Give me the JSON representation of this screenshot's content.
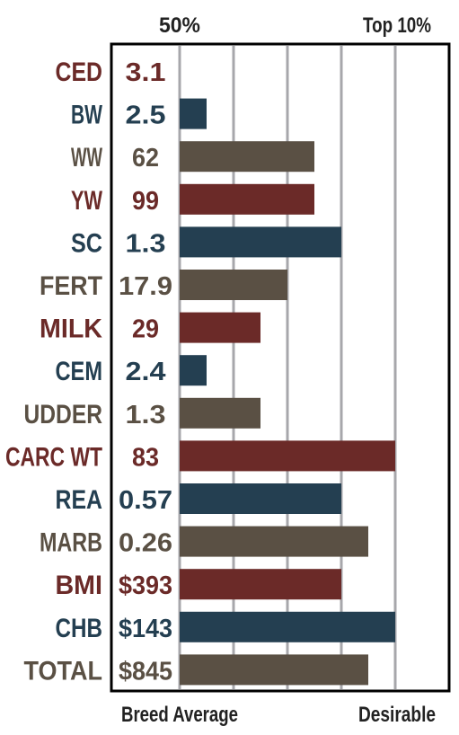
{
  "chart_data": {
    "type": "bar",
    "orientation": "horizontal",
    "top_labels": [
      "50%",
      "Top 10%"
    ],
    "bottom_labels": [
      "Breed Average",
      "Desirable"
    ],
    "xlim": [
      0,
      5
    ],
    "grid": true,
    "colors": {
      "red": "#6b2a28",
      "blue": "#243f51",
      "brown": "#5a5044"
    },
    "rows": [
      {
        "trait": "CED",
        "value_label": "3.1",
        "bar": 0,
        "color": "red"
      },
      {
        "trait": "BW",
        "value_label": "2.5",
        "bar": 0.5,
        "color": "blue"
      },
      {
        "trait": "WW",
        "value_label": "62",
        "bar": 2.5,
        "color": "brown"
      },
      {
        "trait": "YW",
        "value_label": "99",
        "bar": 2.5,
        "color": "red"
      },
      {
        "trait": "SC",
        "value_label": "1.3",
        "bar": 3.0,
        "color": "blue"
      },
      {
        "trait": "FERT",
        "value_label": "17.9",
        "bar": 2.0,
        "color": "brown"
      },
      {
        "trait": "MILK",
        "value_label": "29",
        "bar": 1.5,
        "color": "red"
      },
      {
        "trait": "CEM",
        "value_label": "2.4",
        "bar": 0.5,
        "color": "blue"
      },
      {
        "trait": "UDDER",
        "value_label": "1.3",
        "bar": 1.5,
        "color": "brown"
      },
      {
        "trait": "CARC WT",
        "value_label": "83",
        "bar": 4.0,
        "color": "red"
      },
      {
        "trait": "REA",
        "value_label": "0.57",
        "bar": 3.0,
        "color": "blue"
      },
      {
        "trait": "MARB",
        "value_label": "0.26",
        "bar": 3.5,
        "color": "brown"
      },
      {
        "trait": "BMI",
        "value_label": "$393",
        "bar": 3.0,
        "color": "red"
      },
      {
        "trait": "CHB",
        "value_label": "$143",
        "bar": 4.0,
        "color": "blue"
      },
      {
        "trait": "TOTAL",
        "value_label": "$845",
        "bar": 3.5,
        "color": "brown"
      }
    ]
  }
}
